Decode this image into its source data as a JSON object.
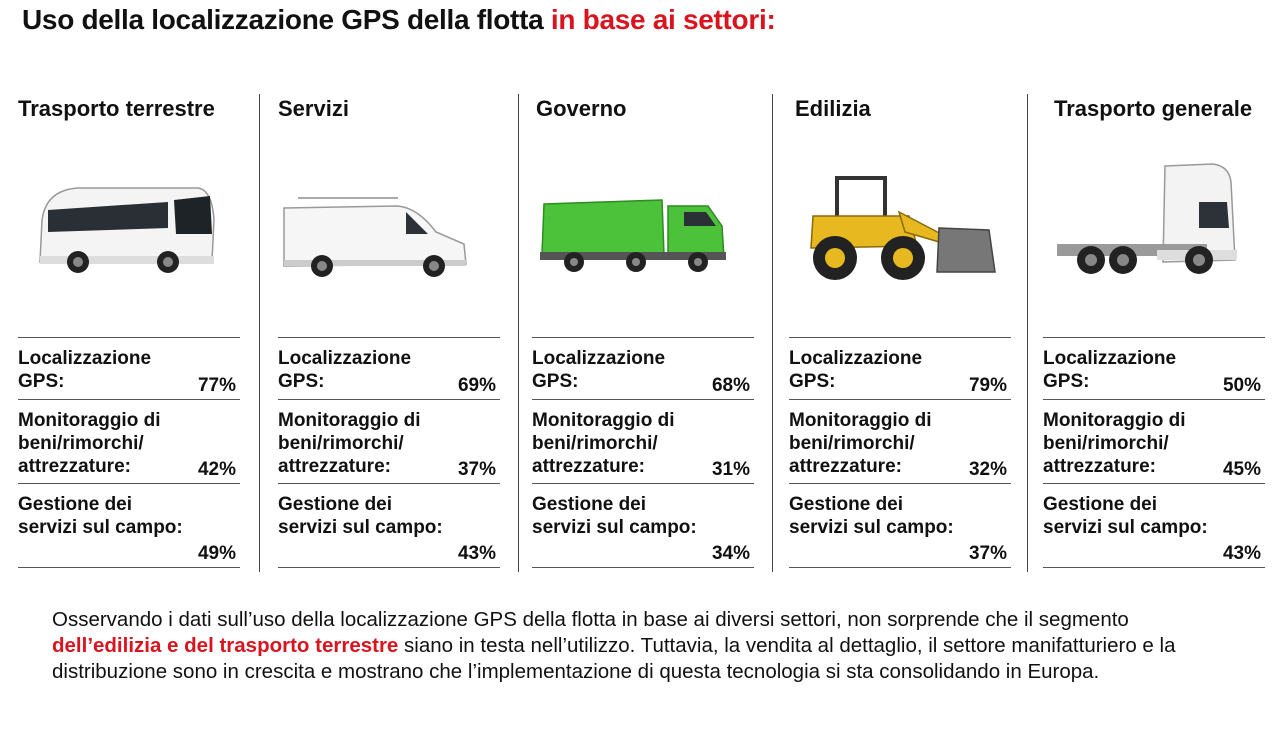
{
  "title": {
    "main": "Uso della localizzazione GPS della flotta",
    "highlight": "in base ai settori:"
  },
  "labels": {
    "gps": "Localizzazione GPS:",
    "asset": "Monitoraggio di beni/rimorchi/ attrezzature:",
    "field": "Gestione dei servizi sul campo:"
  },
  "sectors": [
    {
      "name": "Trasporto terrestre",
      "icon": "bus-icon",
      "gps": "77%",
      "asset": "42%",
      "field": "49%"
    },
    {
      "name": "Servizi",
      "icon": "van-icon",
      "gps": "69%",
      "asset": "37%",
      "field": "43%"
    },
    {
      "name": "Governo",
      "icon": "garbage-truck-icon",
      "gps": "68%",
      "asset": "31%",
      "field": "34%"
    },
    {
      "name": "Edilizia",
      "icon": "wheel-loader-icon",
      "gps": "79%",
      "asset": "32%",
      "field": "37%"
    },
    {
      "name": "Trasporto generale",
      "icon": "truck-tractor-icon",
      "gps": "50%",
      "asset": "45%",
      "field": "43%"
    }
  ],
  "paragraph": {
    "part1": "Osservando i dati sull’uso della localizzazione GPS della flotta in base ai diversi settori, non sorprende che il segmento ",
    "highlight": "dell’edilizia e del trasporto terrestre",
    "part2": " siano in testa nell’utilizzo. Tuttavia, la vendita al dettaglio, il settore manifatturiero e la distribuzione sono in crescita e mostrano che l’implementazione di questa tecnologia si sta consolidando in Europa."
  },
  "colors": {
    "accent": "#d9141e",
    "garbage_truck": "#4cc23a",
    "loader": "#e8b820"
  }
}
